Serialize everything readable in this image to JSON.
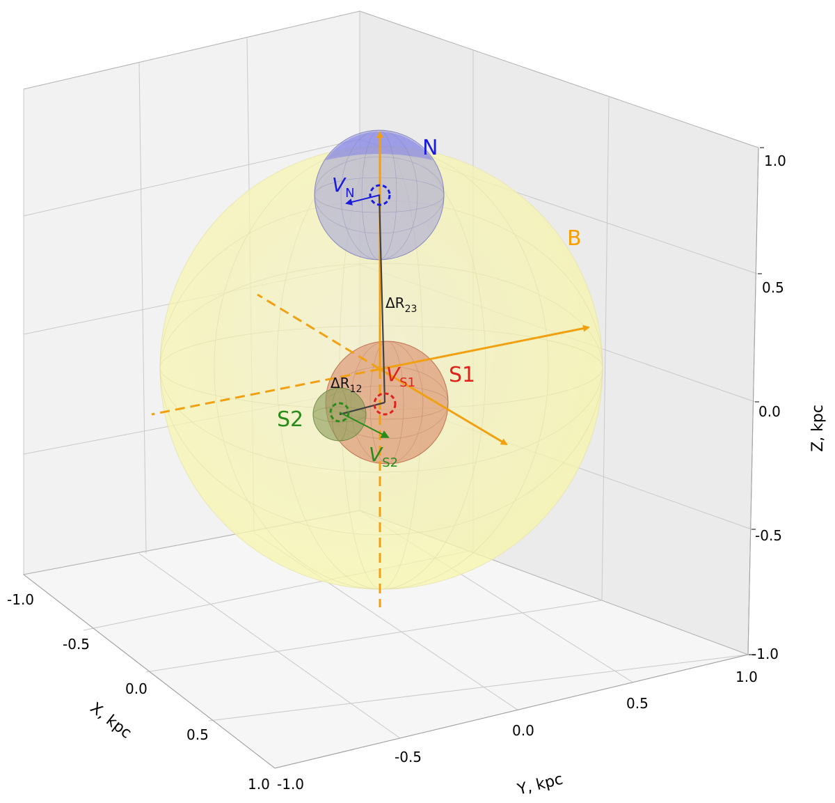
{
  "axes": {
    "x": {
      "label": "X, kpc",
      "ticks": [
        "-1.0",
        "-0.5",
        "0.0",
        "0.5",
        "1.0"
      ]
    },
    "y": {
      "label": "Y, kpc",
      "ticks": [
        "-1.0",
        "-0.5",
        "0.0",
        "0.5",
        "1.0"
      ]
    },
    "z": {
      "label": "Z, kpc",
      "ticks": [
        "1.0",
        "0.5",
        "0.0",
        "-0.5",
        "-1.0"
      ]
    },
    "range": [
      -1.0,
      1.0
    ],
    "grid": true
  },
  "spheres": {
    "B": {
      "label": "B",
      "color": "#f5a000",
      "fill": "#ffff99"
    },
    "N": {
      "label": "N",
      "color": "#1a1adc",
      "fill": "#8888ff"
    },
    "S1": {
      "label": "S1",
      "color": "#e0201a",
      "fill": "#e07060"
    },
    "S2": {
      "label": "S2",
      "color": "#2a8a1a",
      "fill": "#66aa44"
    }
  },
  "vectors": {
    "VN": {
      "main": "V",
      "sub": "N",
      "color": "#1a1adc"
    },
    "VS1": {
      "main": "V",
      "sub": "S1",
      "color": "#e0201a"
    },
    "VS2": {
      "main": "V",
      "sub": "S2",
      "color": "#2a8a1a"
    }
  },
  "separations": {
    "dR23": {
      "main": "ΔR",
      "sub": "23"
    },
    "dR12": {
      "main": "ΔR",
      "sub": "12"
    }
  },
  "principal_axes_color": "#f0a010"
}
